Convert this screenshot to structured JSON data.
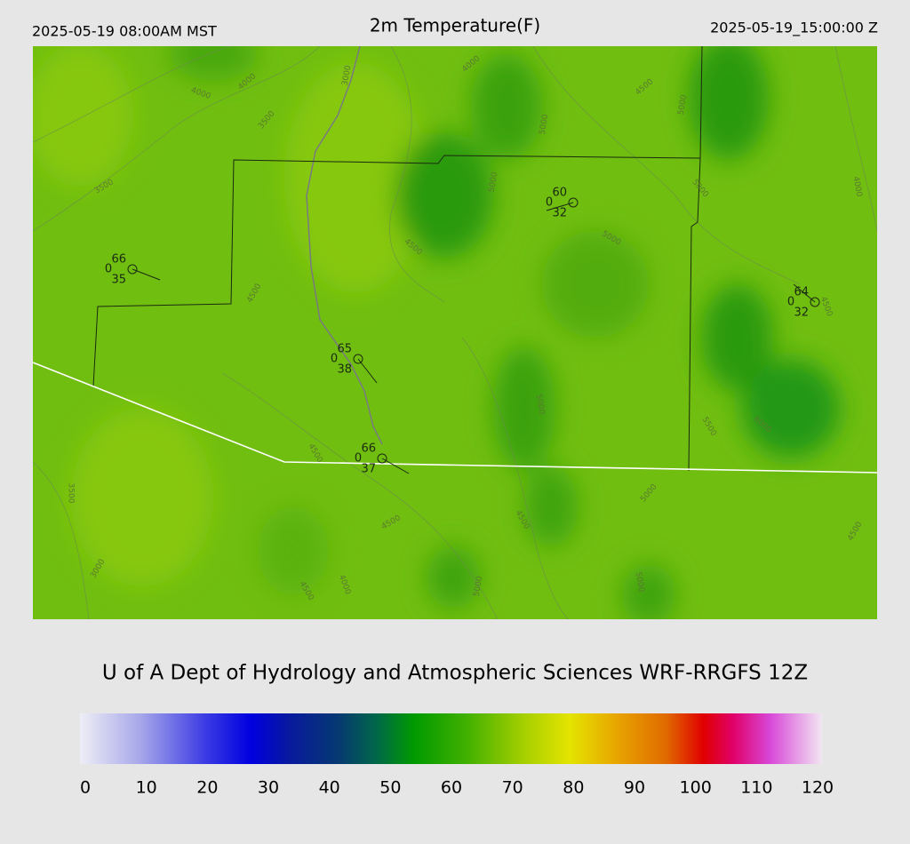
{
  "header": {
    "left": "2025-05-19 08:00AM MST",
    "title": "2m Temperature(F)",
    "right": "2025-05-19_15:00:00 Z"
  },
  "map": {
    "stations": [
      {
        "temperature": "66",
        "pressure": "0",
        "dewpoint": "35"
      },
      {
        "temperature": "60",
        "pressure": "0",
        "dewpoint": "32"
      },
      {
        "temperature": "64",
        "pressure": "0",
        "dewpoint": "32"
      },
      {
        "temperature": "65",
        "pressure": "0",
        "dewpoint": "38"
      },
      {
        "temperature": "66",
        "pressure": "0",
        "dewpoint": "37"
      }
    ],
    "contour_labels": [
      "4000",
      "4000",
      "3000",
      "3500",
      "4000",
      "4500",
      "5000",
      "5000",
      "5000",
      "5000",
      "4000",
      "3500",
      "4500",
      "5000",
      "4500",
      "4500",
      "5000",
      "5500",
      "6000",
      "4500",
      "3500",
      "5000",
      "4500",
      "4500",
      "4500",
      "3000",
      "4000",
      "4500",
      "5000",
      "5000"
    ]
  },
  "footer": "U of A Dept of Hydrology and Atmospheric Sciences WRF-RRGFS 12Z",
  "colorbar": {
    "ticks": [
      "0",
      "10",
      "20",
      "30",
      "40",
      "50",
      "60",
      "70",
      "80",
      "90",
      "100",
      "110",
      "120"
    ]
  }
}
